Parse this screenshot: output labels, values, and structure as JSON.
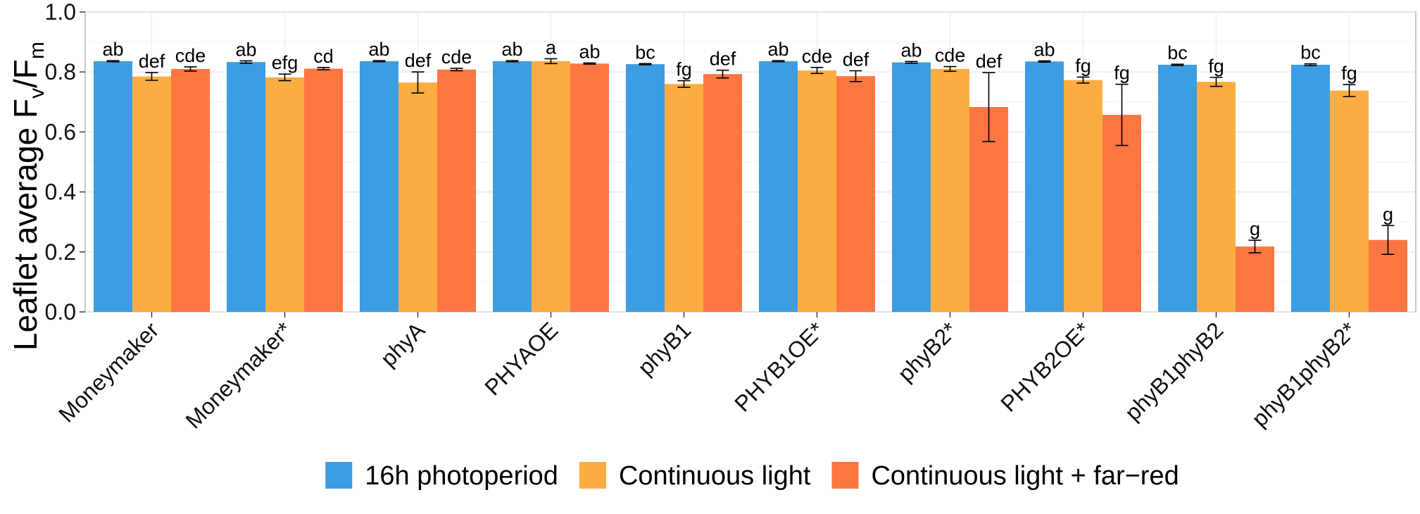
{
  "chart_data": {
    "type": "bar",
    "title": "",
    "xlabel": "",
    "ylabel": {
      "prefix": "Leaflet average ",
      "fv_main": "F",
      "fv_sub": "v",
      "slash": "/",
      "fm_main": "F",
      "fm_sub": "m"
    },
    "ylim": [
      0.0,
      1.0
    ],
    "yticks": [
      "0.0",
      "0.2",
      "0.4",
      "0.6",
      "0.8",
      "1.0"
    ],
    "grid": true,
    "legend_position": "bottom",
    "categories": [
      "Moneymaker",
      "Moneymaker*",
      "phyA",
      "PHYAOE",
      "phyB1",
      "PHYB1OE*",
      "phyB2*",
      "PHYB2OE*",
      "phyB1phyB2",
      "phyB1phyB2*"
    ],
    "series": [
      {
        "name": "16h photoperiod",
        "color": "#3d9de3",
        "values": [
          0.836,
          0.833,
          0.836,
          0.836,
          0.826,
          0.836,
          0.832,
          0.835,
          0.824,
          0.824
        ],
        "errors": [
          0.002,
          0.004,
          0.002,
          0.002,
          0.002,
          0.002,
          0.003,
          0.002,
          0.002,
          0.003
        ],
        "labels": [
          "ab",
          "ab",
          "ab",
          "ab",
          "bc",
          "ab",
          "ab",
          "ab",
          "bc",
          "bc"
        ]
      },
      {
        "name": "Continuous light",
        "color": "#fbad42",
        "values": [
          0.785,
          0.782,
          0.765,
          0.836,
          0.76,
          0.805,
          0.81,
          0.773,
          0.767,
          0.738
        ],
        "errors": [
          0.013,
          0.011,
          0.035,
          0.008,
          0.011,
          0.01,
          0.008,
          0.01,
          0.015,
          0.02
        ],
        "labels": [
          "def",
          "efg",
          "def",
          "a",
          "fg",
          "cde",
          "cde",
          "fg",
          "fg",
          "fg"
        ]
      },
      {
        "name": "Continuous light + far−red",
        "color": "#fc7642",
        "values": [
          0.81,
          0.811,
          0.808,
          0.828,
          0.793,
          0.786,
          0.683,
          0.657,
          0.218,
          0.24
        ],
        "errors": [
          0.007,
          0.004,
          0.004,
          0.002,
          0.013,
          0.018,
          0.115,
          0.102,
          0.021,
          0.048
        ],
        "labels": [
          "cde",
          "cd",
          "cde",
          "ab",
          "def",
          "def",
          "def",
          "fg",
          "g",
          "g"
        ]
      }
    ]
  }
}
